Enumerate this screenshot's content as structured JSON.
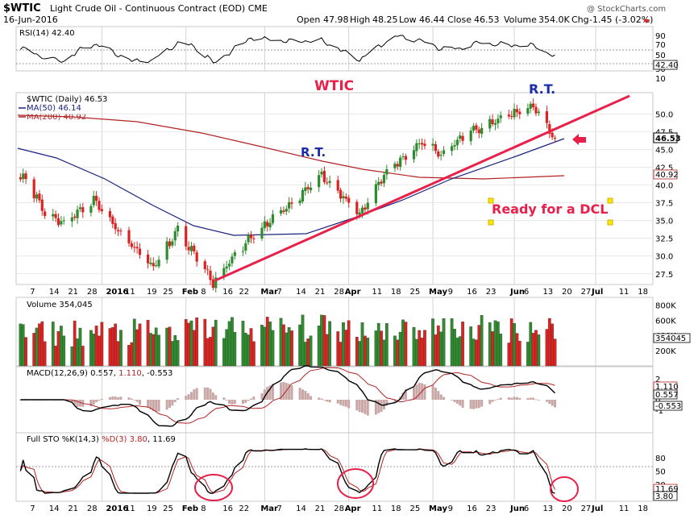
{
  "header": {
    "symbol": "$WTIC",
    "name": "Light Crude Oil - Continuous Contract (EOD) CME",
    "date": "16-Jun-2016",
    "watermark": "@ StockCharts.com",
    "open_label": "Open",
    "open": "47.98",
    "high_label": "High",
    "high": "48.25",
    "low_label": "Low",
    "low": "46.44",
    "close_label": "Close",
    "close": "46.53",
    "volume_label": "Volume",
    "volume": "354.0K",
    "chg_label": "Chg",
    "chg": "-1.45 (-3.02%)"
  },
  "colors": {
    "up": "#2e8b2e",
    "down": "#dd2222",
    "trend": "#e8204a",
    "ma50": "#1a237e",
    "ma200": "#b22222",
    "annotation_blue": "#1b2ea8",
    "panel_border": "#c8c8c8"
  },
  "panels": {
    "rsi": {
      "legend": "RSI(14) 42.40",
      "ticks": [
        "90",
        "70",
        "50",
        "30",
        "10"
      ],
      "value_tag": "42.40"
    },
    "price": {
      "legend_main": "$WTIC (Daily) 46.53",
      "legend_ma50": "MA(50) 46.14",
      "legend_ma200": "MA(200) 40.92",
      "ticks": [
        "50.0",
        "47.5",
        "45.0",
        "42.5",
        "40.0",
        "37.5",
        "35.0",
        "32.5",
        "30.0",
        "27.5"
      ],
      "price_tag": "46.53",
      "ma200_tag": "40.92"
    },
    "volume": {
      "legend": "Volume 354,045",
      "ticks": [
        "800K",
        "600K",
        "400K",
        "200K"
      ],
      "tag": "354045"
    },
    "macd": {
      "legend_a": "MACD(12,26,9) 0.557, ",
      "legend_b": "1.110",
      "legend_c": ", -0.553",
      "ticks": [
        "2",
        "1",
        "0",
        "-1"
      ],
      "tag1": "1.110",
      "tag2": "0.557",
      "tag3": "-0.553"
    },
    "sto": {
      "legend_a": "Full STO %K(14,3) ",
      "legend_b": "%D(3) 3.80",
      "legend_c": ", 11.69",
      "ticks": [
        "80",
        "50",
        "20"
      ],
      "tag1": "11.69",
      "tag2": "3.80"
    }
  },
  "x_axis": [
    "7",
    "14",
    "21",
    "28",
    "2016",
    "11",
    "19",
    "25",
    "Feb",
    "8",
    "16",
    "22",
    "Mar",
    "7",
    "14",
    "21",
    "28",
    "Apr",
    "11",
    "18",
    "25",
    "May",
    "9",
    "16",
    "23",
    "Jun",
    "6",
    "13",
    "20",
    "27",
    "Jul",
    "11",
    "18"
  ],
  "annotations": {
    "title": "WTIC",
    "rt_left": "R.T.",
    "rt_right": "R.T.",
    "dcl": "Ready for a DCL"
  },
  "chart_data": {
    "type": "candlestick",
    "title": "$WTIC Light Crude Oil - Continuous Contract (EOD) CME",
    "series": [
      {
        "name": "$WTIC (Daily)",
        "type": "candlestick"
      },
      {
        "name": "MA(50)",
        "type": "line",
        "last": 46.14
      },
      {
        "name": "MA(200)",
        "type": "line",
        "last": 40.92
      },
      {
        "name": "RSI(14)",
        "type": "line",
        "last": 42.4
      },
      {
        "name": "Volume",
        "type": "bar",
        "last": 354045
      },
      {
        "name": "MACD(12,26,9)",
        "type": "line",
        "values": [
          0.557,
          1.11,
          -0.553
        ]
      },
      {
        "name": "Full STO %K(14,3) %D(3)",
        "type": "line",
        "values": [
          3.8,
          11.69
        ]
      }
    ],
    "price_ylim": [
      26,
      53
    ],
    "price_anchors": [
      {
        "date": "2015-12-04",
        "close": 41.1
      },
      {
        "date": "2015-12-11",
        "close": 36.0
      },
      {
        "date": "2015-12-18",
        "close": 34.7
      },
      {
        "date": "2015-12-29",
        "close": 37.9
      },
      {
        "date": "2016-01-08",
        "close": 33.2
      },
      {
        "date": "2016-01-20",
        "close": 28.4
      },
      {
        "date": "2016-01-29",
        "close": 33.6
      },
      {
        "date": "2016-02-11",
        "close": 26.2
      },
      {
        "date": "2016-02-22",
        "close": 31.5
      },
      {
        "date": "2016-03-08",
        "close": 36.5
      },
      {
        "date": "2016-03-22",
        "close": 41.5
      },
      {
        "date": "2016-04-05",
        "close": 35.7
      },
      {
        "date": "2016-04-14",
        "close": 41.5
      },
      {
        "date": "2016-04-28",
        "close": 46.0
      },
      {
        "date": "2016-05-05",
        "close": 44.3
      },
      {
        "date": "2016-05-16",
        "close": 47.7
      },
      {
        "date": "2016-05-27",
        "close": 49.3
      },
      {
        "date": "2016-06-08",
        "close": 51.2
      },
      {
        "date": "2016-06-16",
        "close": 46.53
      }
    ]
  }
}
